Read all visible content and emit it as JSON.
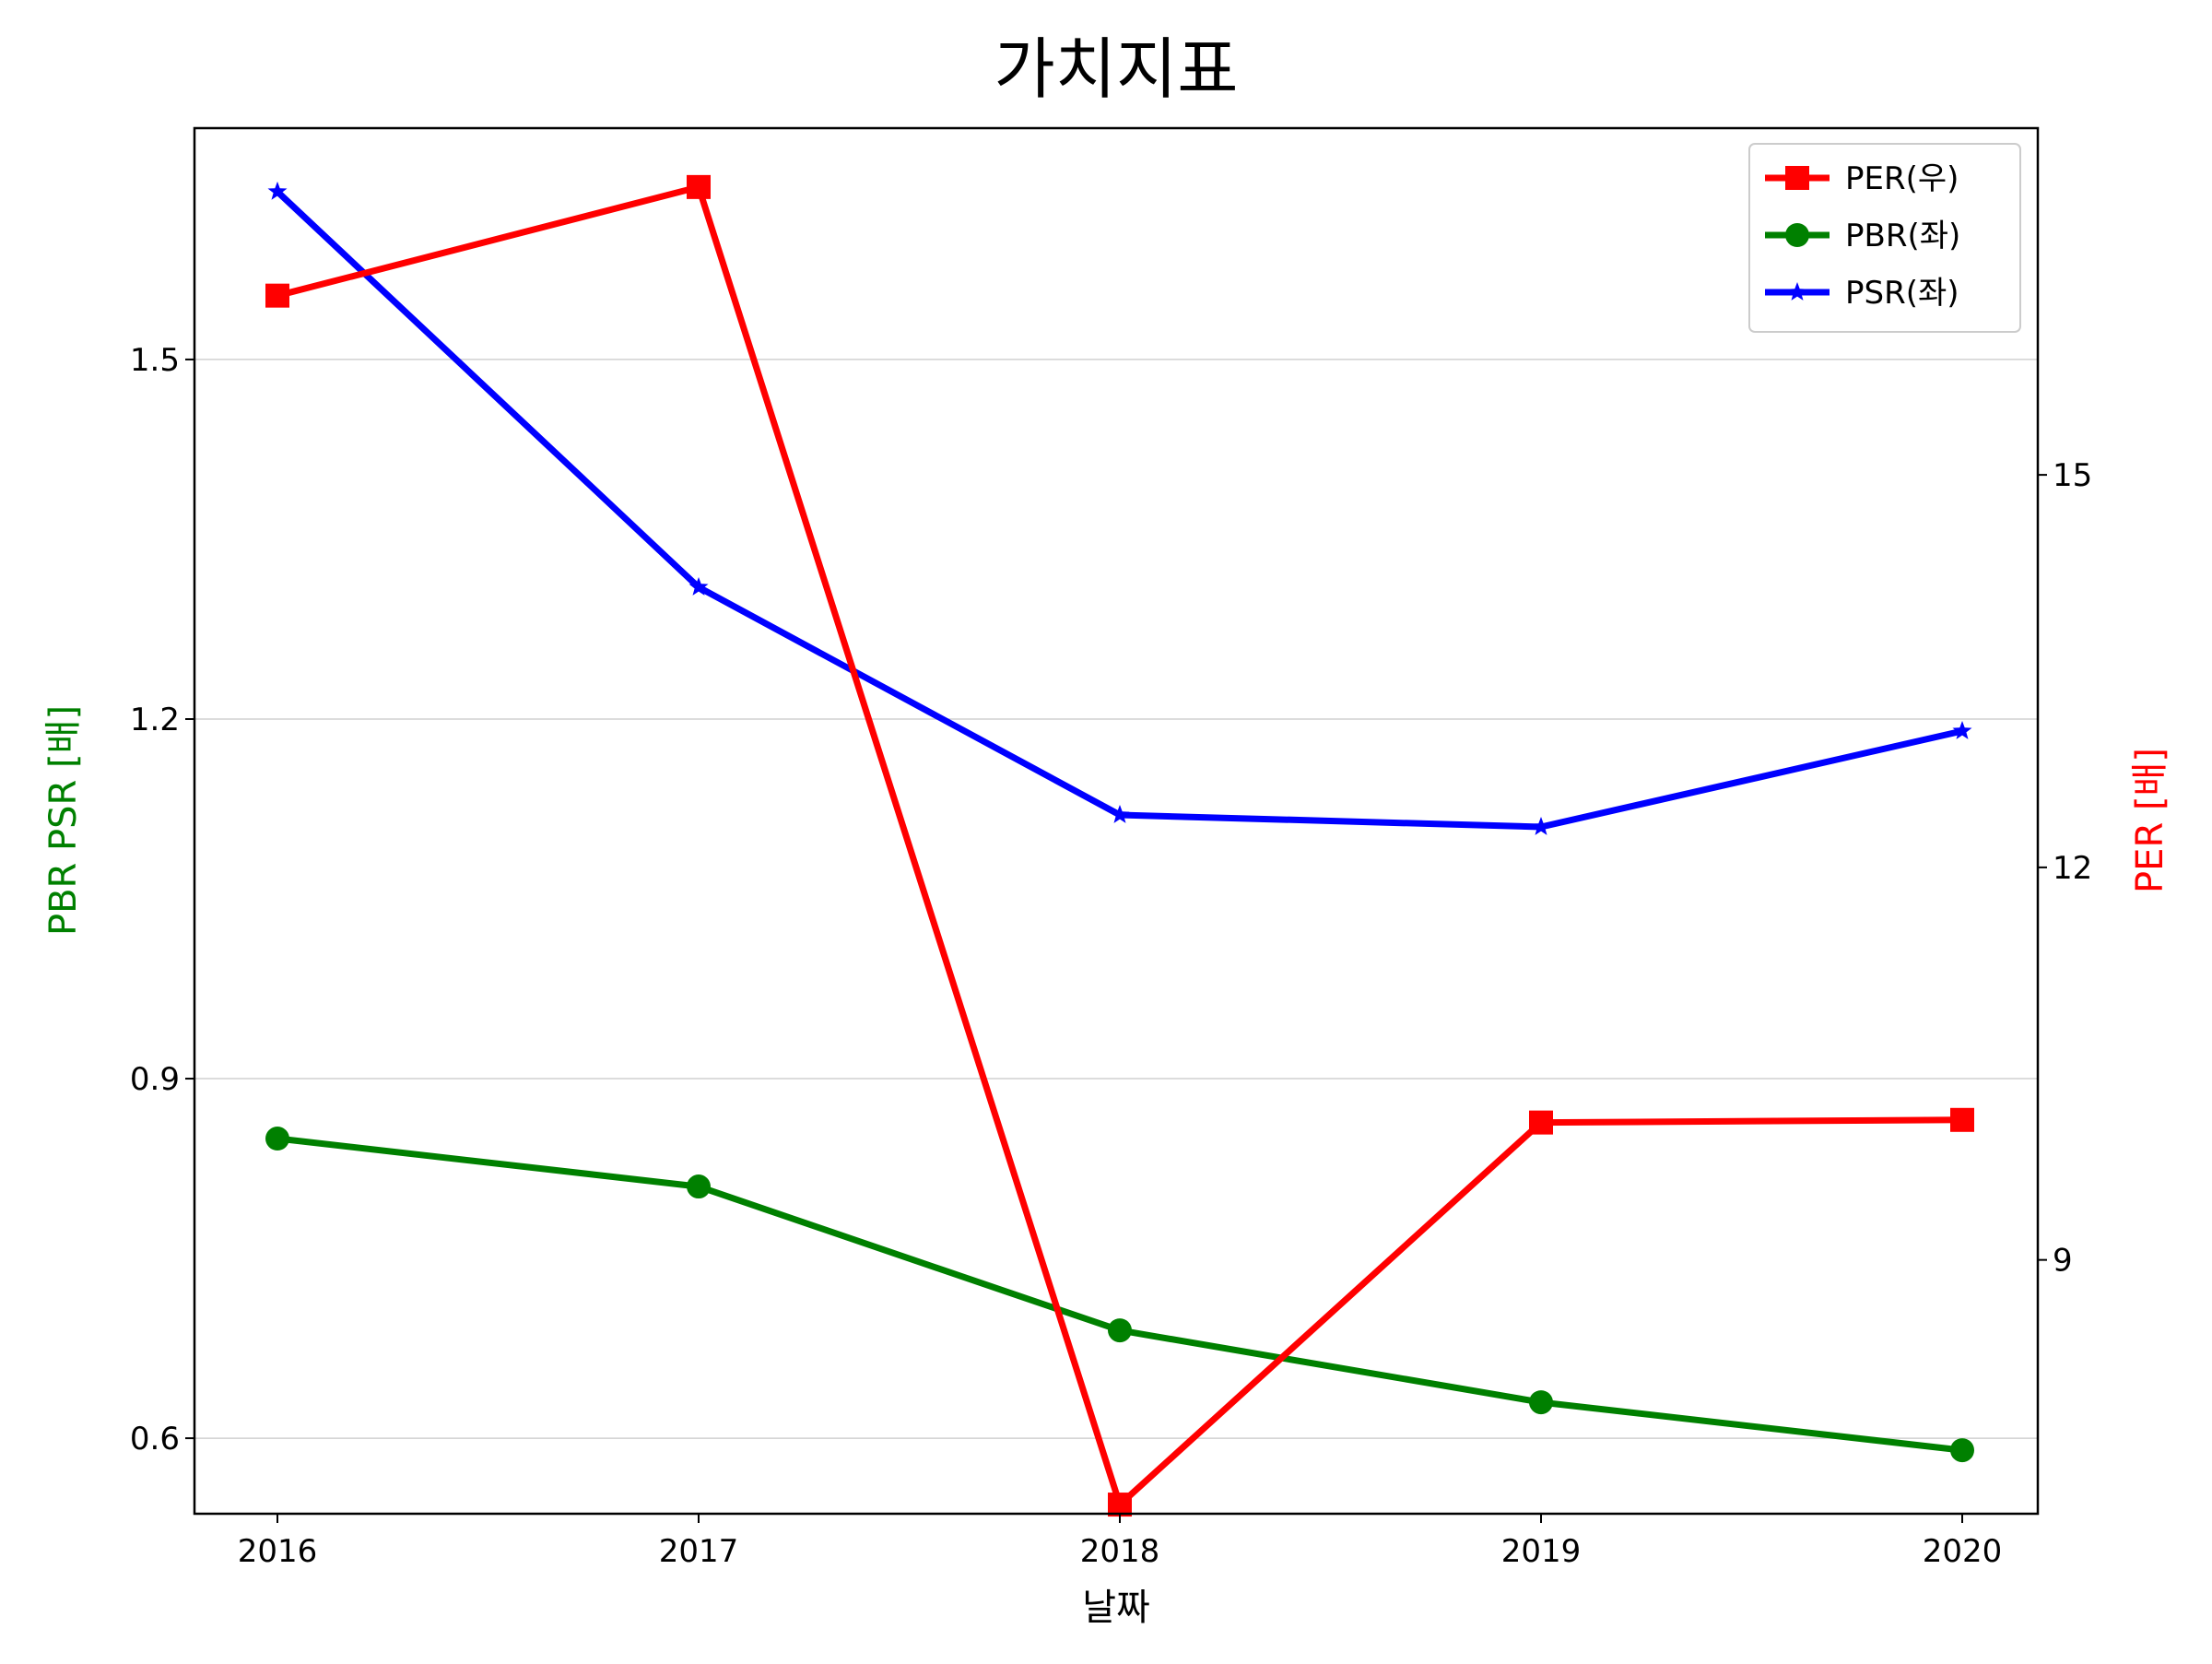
{
  "chart_data": {
    "type": "line",
    "title": "가치지표",
    "xlabel": "날짜",
    "ylabel_left": "PBR PSR [배]",
    "ylabel_right": "PER [배]",
    "categories": [
      "2016",
      "2017",
      "2018",
      "2019",
      "2020"
    ],
    "x_tick_labels": [
      "2016",
      "2017",
      "2018",
      "2019",
      "2020"
    ],
    "y_left_ticks": [
      "0.6",
      "0.9",
      "1.2",
      "1.5"
    ],
    "y_right_ticks": [
      "9",
      "12",
      "15"
    ],
    "y_left_range": [
      0.537,
      1.693
    ],
    "y_right_range": [
      7.06,
      17.65
    ],
    "grid": "horizontal",
    "legend_position": "top-right",
    "series": [
      {
        "name": "PER(우)",
        "axis": "right",
        "color": "#ff0000",
        "marker": "square",
        "values": [
          16.37,
          17.2,
          7.13,
          10.05,
          10.07
        ]
      },
      {
        "name": "PBR(좌)",
        "axis": "left",
        "color": "#008000",
        "marker": "circle",
        "values": [
          0.85,
          0.81,
          0.69,
          0.63,
          0.59
        ]
      },
      {
        "name": "PSR(좌)",
        "axis": "left",
        "color": "#0000ff",
        "marker": "star",
        "values": [
          1.64,
          1.31,
          1.12,
          1.11,
          1.19
        ]
      }
    ]
  }
}
